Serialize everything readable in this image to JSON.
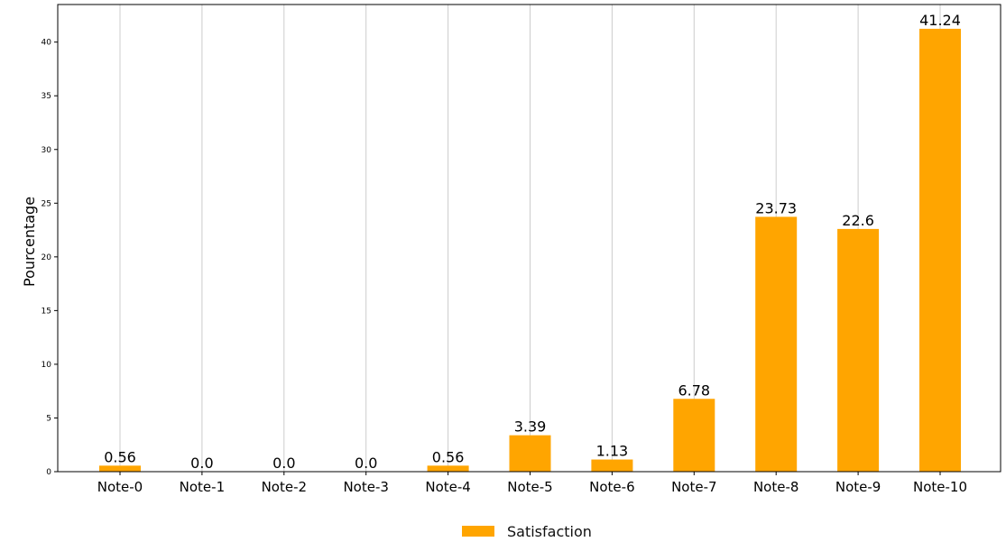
{
  "chart_data": {
    "type": "bar",
    "title": "",
    "xlabel": "",
    "ylabel": "Pourcentage",
    "categories": [
      "Note-0",
      "Note-1",
      "Note-2",
      "Note-3",
      "Note-4",
      "Note-5",
      "Note-6",
      "Note-7",
      "Note-8",
      "Note-9",
      "Note-10"
    ],
    "series": [
      {
        "name": "Satisfaction",
        "values": [
          0.56,
          0.0,
          0.0,
          0.0,
          0.56,
          3.39,
          1.13,
          6.78,
          23.73,
          22.6,
          41.24
        ],
        "color": "#ffa500"
      }
    ],
    "value_labels": [
      "0.56",
      "0.0",
      "0.0",
      "0.0",
      "0.56",
      "3.39",
      "1.13",
      "6.78",
      "23.73",
      "22.6",
      "41.24"
    ],
    "ylim": [
      0,
      43.5
    ],
    "yticks": [
      0,
      5,
      10,
      15,
      20,
      25,
      30,
      35,
      40
    ],
    "grid": {
      "x": true,
      "y": false,
      "color": "#cccccc"
    },
    "legend_position": "bottom-center"
  }
}
